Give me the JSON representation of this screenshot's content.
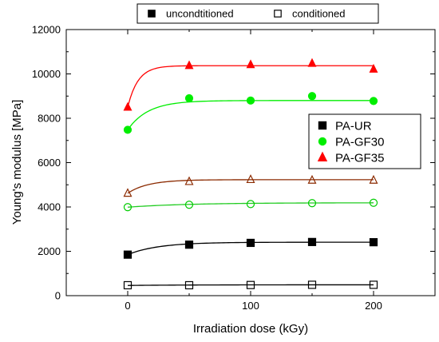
{
  "chart_data": {
    "type": "scatter",
    "title": "",
    "xlabel": "Irradiation dose (kGy)",
    "ylabel": "Young's modulus [MPa]",
    "xlim": [
      -50,
      250
    ],
    "ylim": [
      0,
      12000
    ],
    "x_ticks": [
      0,
      100,
      200
    ],
    "y_ticks": [
      0,
      2000,
      4000,
      6000,
      8000,
      10000,
      12000
    ],
    "grid": false,
    "x": [
      0,
      50,
      100,
      150,
      200
    ],
    "top_legend": {
      "placement": "top",
      "entries": [
        {
          "label": "uncondtitioned",
          "marker": "filled"
        },
        {
          "label": "conditioned",
          "marker": "open"
        }
      ]
    },
    "material_legend": {
      "placement": "right",
      "entries": [
        {
          "label": "PA-UR",
          "marker": "square",
          "color": "#000000"
        },
        {
          "label": "PA-GF30",
          "marker": "circle",
          "color": "#00ee00"
        },
        {
          "label": "PA-GF35",
          "marker": "triangle",
          "color": "#ff0000"
        }
      ]
    },
    "series": [
      {
        "material": "PA-UR",
        "state": "uncondtitioned",
        "marker": "square",
        "filled": true,
        "color": "#000000",
        "line_color": "#000000",
        "values": [
          1850,
          2300,
          2380,
          2420,
          2410
        ],
        "fit": {
          "start": 1850,
          "plateau": 2410,
          "k": 0.04
        }
      },
      {
        "material": "PA-UR",
        "state": "conditioned",
        "marker": "square",
        "filled": false,
        "color": "#000000",
        "line_color": "#000000",
        "values": [
          470,
          470,
          480,
          490,
          490
        ],
        "fit": {
          "start": 460,
          "plateau": 490,
          "k": 0.02
        }
      },
      {
        "material": "PA-GF30",
        "state": "uncondtitioned",
        "marker": "circle",
        "filled": true,
        "color": "#00ee00",
        "line_color": "#00ee00",
        "values": [
          7480,
          8900,
          8800,
          9000,
          8780
        ],
        "fit": {
          "start": 7480,
          "plateau": 8800,
          "k": 0.06
        }
      },
      {
        "material": "PA-GF30",
        "state": "conditioned",
        "marker": "circle",
        "filled": false,
        "color": "#00cc00",
        "line_color": "#22cc22",
        "values": [
          3990,
          4100,
          4130,
          4170,
          4190
        ],
        "fit": {
          "start": 3990,
          "plateau": 4190,
          "k": 0.02
        }
      },
      {
        "material": "PA-GF35",
        "state": "uncondtitioned",
        "marker": "triangle",
        "filled": true,
        "color": "#ff0000",
        "line_color": "#ff0000",
        "values": [
          8500,
          10380,
          10420,
          10480,
          10220
        ],
        "fit": {
          "start": 8500,
          "plateau": 10370,
          "k": 0.12
        }
      },
      {
        "material": "PA-GF35",
        "state": "conditioned",
        "marker": "triangle",
        "filled": false,
        "color": "#8b2a00",
        "line_color": "#8b2a00",
        "values": [
          4620,
          5150,
          5240,
          5210,
          5210
        ],
        "fit": {
          "start": 4620,
          "plateau": 5230,
          "k": 0.06
        }
      }
    ]
  }
}
